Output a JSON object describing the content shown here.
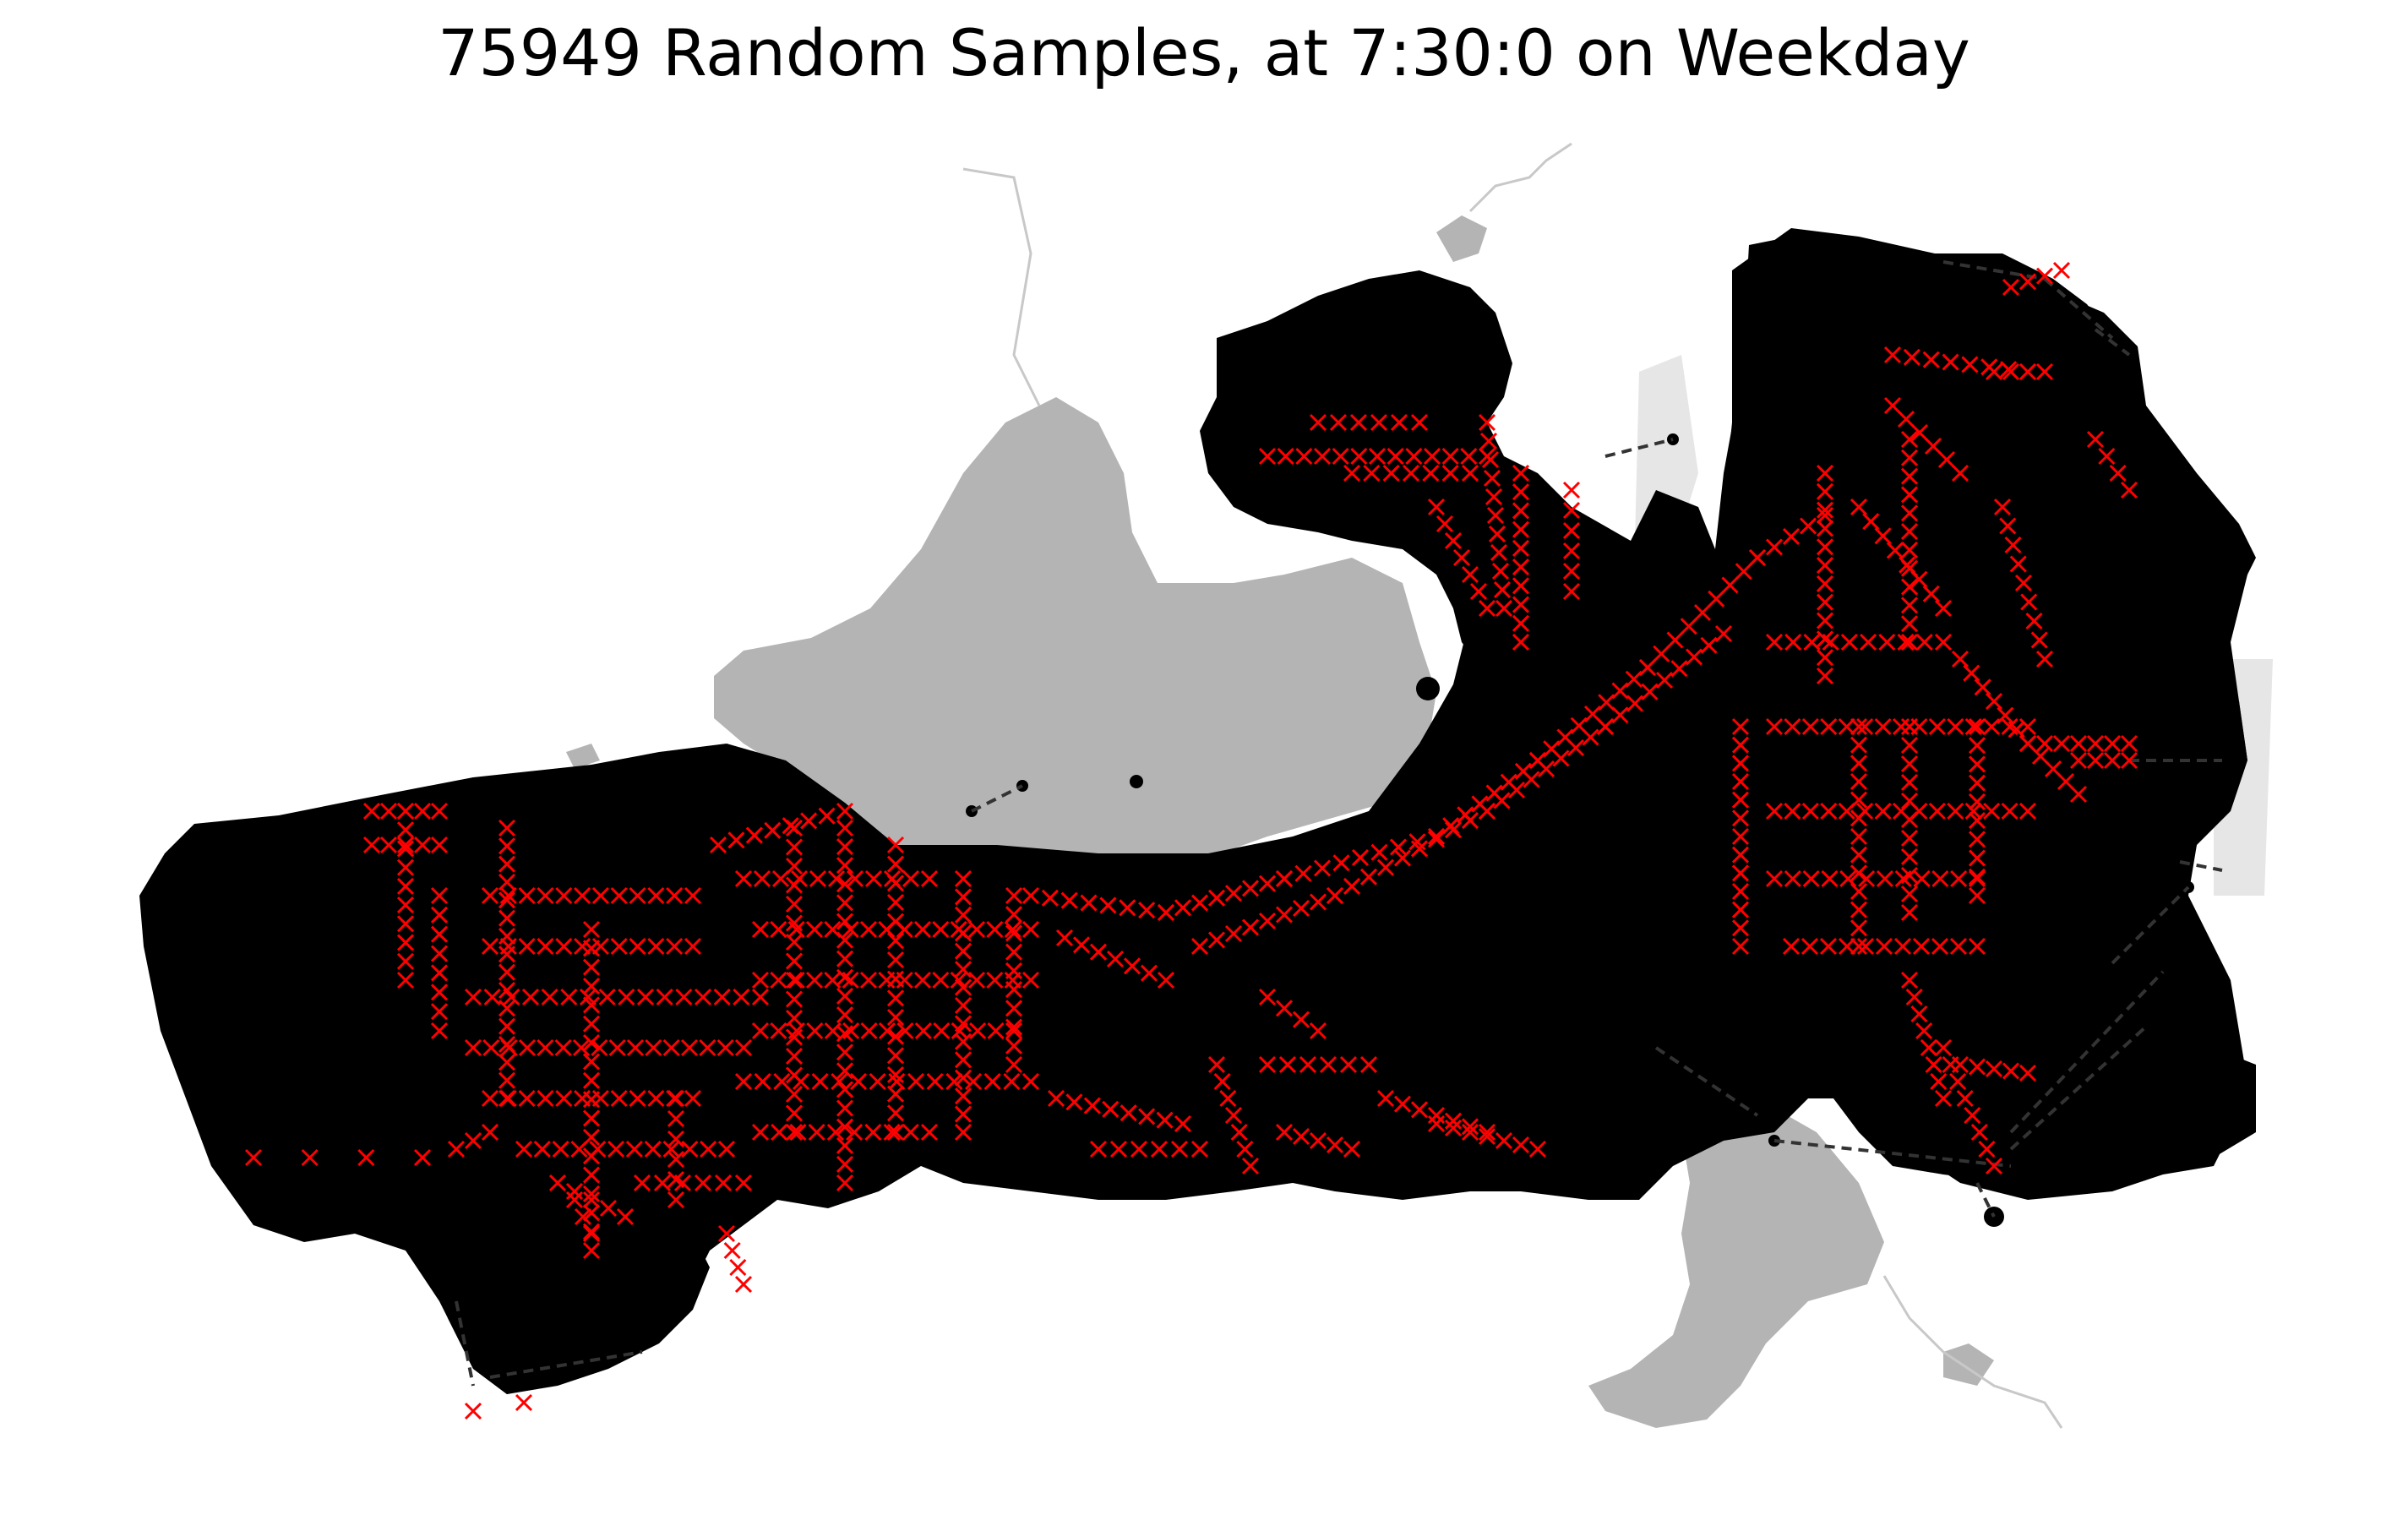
{
  "title": "75949 Random Samples, at 7:30:0 on Weekday",
  "colors": {
    "background": "#ffffff",
    "water": "#b4b4b4",
    "land_overlay": "#e6e6e6",
    "river": "#c8c8c8",
    "sample_points": "#000000",
    "sample_connectors": "#000000",
    "highlight_markers": "#ff0000"
  },
  "layers": [
    {
      "name": "water-bodies",
      "fill": "#b4b4b4"
    },
    {
      "name": "land-overlay",
      "fill": "#e6e6e6"
    },
    {
      "name": "sample-points",
      "marker": "circle",
      "color": "#000000"
    },
    {
      "name": "sample-connectors",
      "style": "dashed",
      "color": "#000000"
    },
    {
      "name": "highlight-markers",
      "marker": "x",
      "color": "#ff0000"
    }
  ]
}
